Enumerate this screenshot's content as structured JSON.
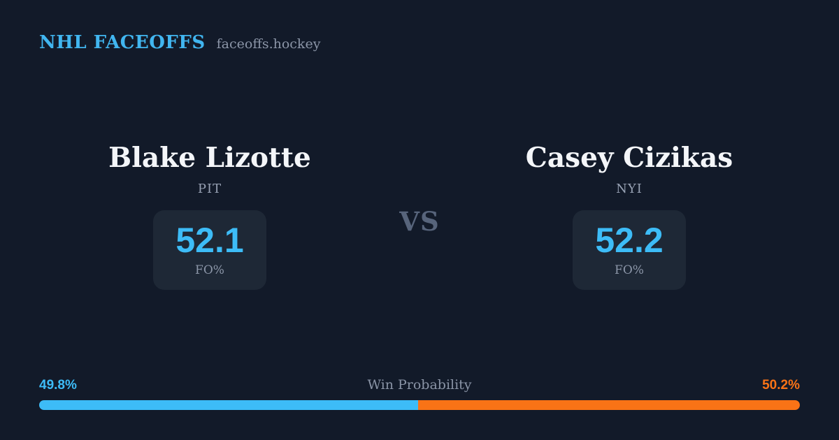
{
  "header": {
    "brand": "NHL FACEOFFS",
    "site": "faceoffs.hockey"
  },
  "matchup": {
    "vs_label": "VS",
    "players": [
      {
        "name": "Blake Lizotte",
        "team": "PIT",
        "stat_value": "52.1",
        "stat_label": "FO%"
      },
      {
        "name": "Casey Cizikas",
        "team": "NYI",
        "stat_value": "52.2",
        "stat_label": "FO%"
      }
    ]
  },
  "win_probability": {
    "title": "Win Probability",
    "left_label": "49.8%",
    "right_label": "50.2%",
    "left_value": 49.8,
    "right_value": 50.2,
    "left_color": "#3dbcf7",
    "right_color": "#f97316"
  },
  "colors": {
    "background": "#121a29",
    "card": "#1e2836",
    "accent_blue": "#3dbcf7",
    "accent_orange": "#f97316",
    "text_primary": "#f4f6f9",
    "text_muted": "#8c96a8"
  }
}
